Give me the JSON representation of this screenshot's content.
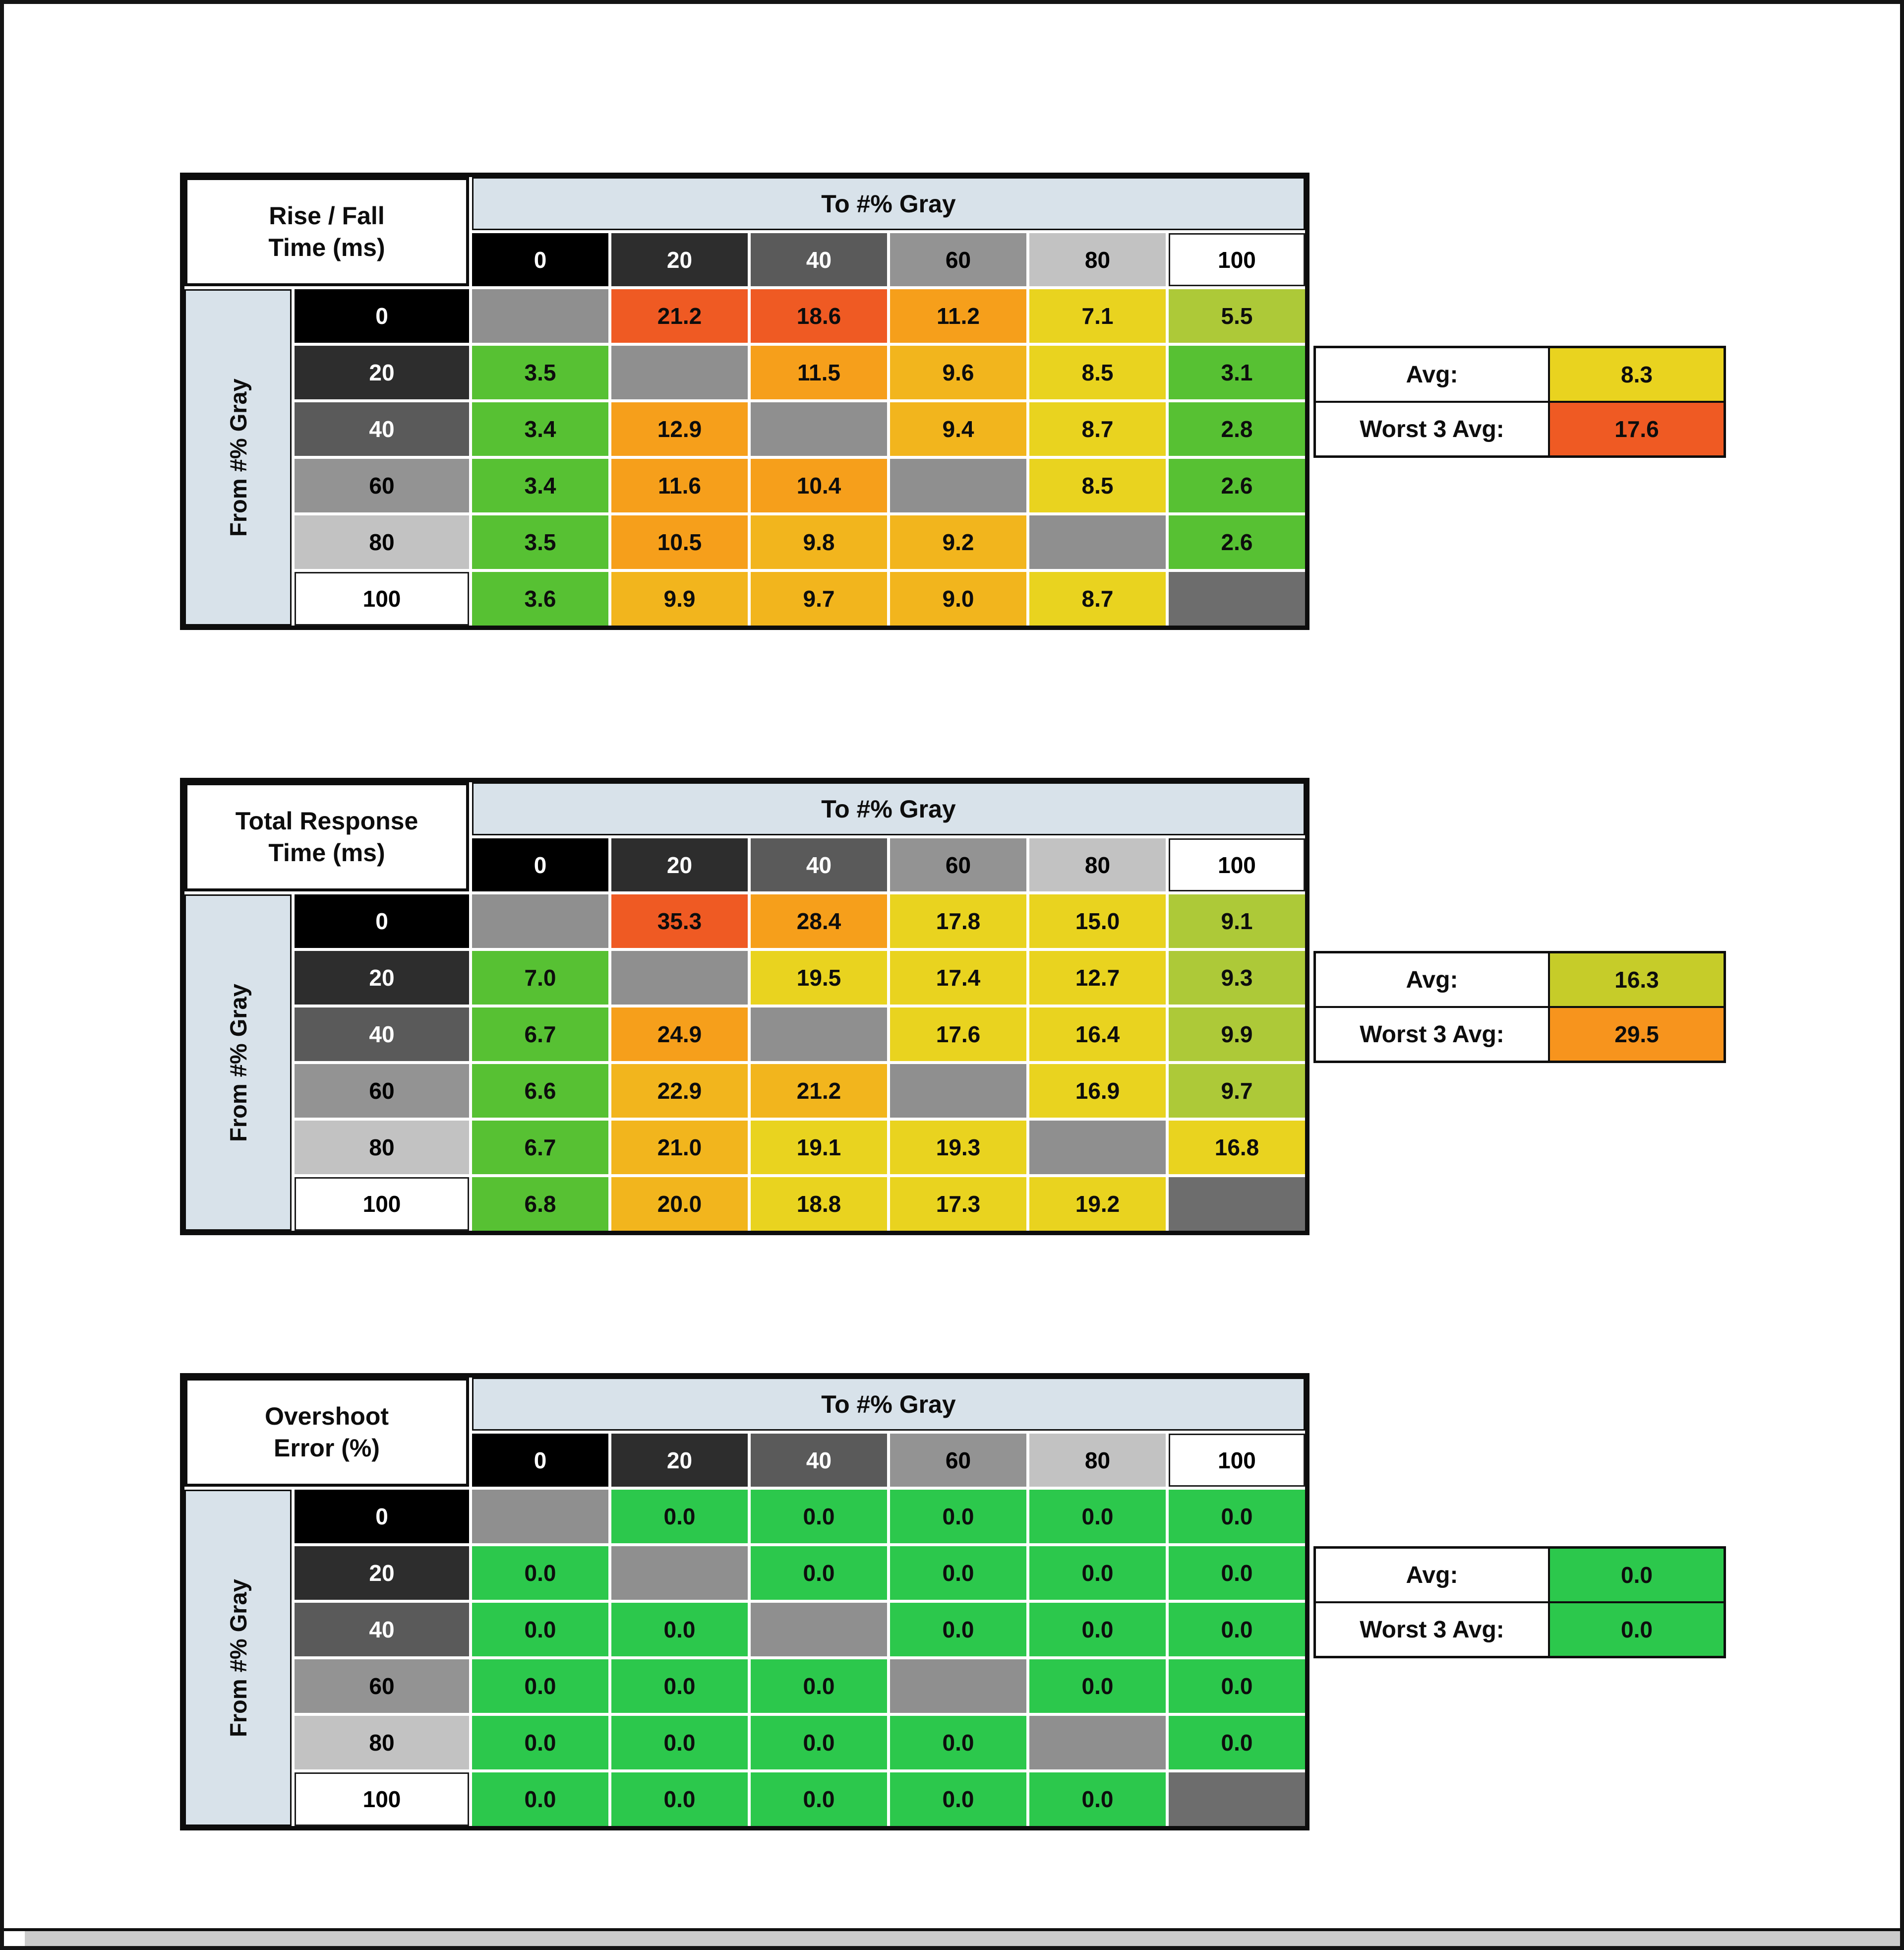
{
  "palette": {
    "g": "#57c133",
    "g2": "#2cc84c",
    "yg": "#adc938",
    "y": "#e9d31f",
    "yo": "#f2b51d",
    "o": "#f69f1b",
    "ro": "#ef5a23",
    "o2": "#f7941d",
    "olive": "#c6cc29",
    "diag": "#8f8f8f",
    "diag_dark": "#6d6d6d",
    "header_blue": "#d8e2ea",
    "gray_bg": [
      "#000000",
      "#2d2d2d",
      "#5a5a5a",
      "#939393",
      "#c2c2c2",
      "#ffffff"
    ],
    "gray_fg": [
      "#ffffff",
      "#ffffff",
      "#ffffff",
      "#000000",
      "#000000",
      "#000000"
    ]
  },
  "tables": [
    {
      "title_line1": "Rise / Fall",
      "title_line2": "Time (ms)",
      "col_header": "To #% Gray",
      "row_header": "From #% Gray",
      "levels": [
        "0",
        "20",
        "40",
        "60",
        "80",
        "100"
      ],
      "cells": [
        [
          null,
          {
            "v": "21.2",
            "c": "ro"
          },
          {
            "v": "18.6",
            "c": "ro"
          },
          {
            "v": "11.2",
            "c": "o"
          },
          {
            "v": "7.1",
            "c": "y"
          },
          {
            "v": "5.5",
            "c": "yg"
          }
        ],
        [
          {
            "v": "3.5",
            "c": "g"
          },
          null,
          {
            "v": "11.5",
            "c": "o"
          },
          {
            "v": "9.6",
            "c": "yo"
          },
          {
            "v": "8.5",
            "c": "y"
          },
          {
            "v": "3.1",
            "c": "g"
          }
        ],
        [
          {
            "v": "3.4",
            "c": "g"
          },
          {
            "v": "12.9",
            "c": "o"
          },
          null,
          {
            "v": "9.4",
            "c": "yo"
          },
          {
            "v": "8.7",
            "c": "y"
          },
          {
            "v": "2.8",
            "c": "g"
          }
        ],
        [
          {
            "v": "3.4",
            "c": "g"
          },
          {
            "v": "11.6",
            "c": "o"
          },
          {
            "v": "10.4",
            "c": "o"
          },
          null,
          {
            "v": "8.5",
            "c": "y"
          },
          {
            "v": "2.6",
            "c": "g"
          }
        ],
        [
          {
            "v": "3.5",
            "c": "g"
          },
          {
            "v": "10.5",
            "c": "o"
          },
          {
            "v": "9.8",
            "c": "yo"
          },
          {
            "v": "9.2",
            "c": "yo"
          },
          null,
          {
            "v": "2.6",
            "c": "g"
          }
        ],
        [
          {
            "v": "3.6",
            "c": "g"
          },
          {
            "v": "9.9",
            "c": "yo"
          },
          {
            "v": "9.7",
            "c": "yo"
          },
          {
            "v": "9.0",
            "c": "yo"
          },
          {
            "v": "8.7",
            "c": "y"
          },
          null
        ]
      ],
      "avg_label": "Avg:",
      "avg": {
        "v": "8.3",
        "c": "y"
      },
      "worst_label": "Worst 3 Avg:",
      "worst": {
        "v": "17.6",
        "c": "ro"
      }
    },
    {
      "title_line1": "Total Response",
      "title_line2": "Time (ms)",
      "col_header": "To #% Gray",
      "row_header": "From #% Gray",
      "levels": [
        "0",
        "20",
        "40",
        "60",
        "80",
        "100"
      ],
      "cells": [
        [
          null,
          {
            "v": "35.3",
            "c": "ro"
          },
          {
            "v": "28.4",
            "c": "o"
          },
          {
            "v": "17.8",
            "c": "y"
          },
          {
            "v": "15.0",
            "c": "y"
          },
          {
            "v": "9.1",
            "c": "yg"
          }
        ],
        [
          {
            "v": "7.0",
            "c": "g"
          },
          null,
          {
            "v": "19.5",
            "c": "y"
          },
          {
            "v": "17.4",
            "c": "y"
          },
          {
            "v": "12.7",
            "c": "y"
          },
          {
            "v": "9.3",
            "c": "yg"
          }
        ],
        [
          {
            "v": "6.7",
            "c": "g"
          },
          {
            "v": "24.9",
            "c": "o"
          },
          null,
          {
            "v": "17.6",
            "c": "y"
          },
          {
            "v": "16.4",
            "c": "y"
          },
          {
            "v": "9.9",
            "c": "yg"
          }
        ],
        [
          {
            "v": "6.6",
            "c": "g"
          },
          {
            "v": "22.9",
            "c": "yo"
          },
          {
            "v": "21.2",
            "c": "yo"
          },
          null,
          {
            "v": "16.9",
            "c": "y"
          },
          {
            "v": "9.7",
            "c": "yg"
          }
        ],
        [
          {
            "v": "6.7",
            "c": "g"
          },
          {
            "v": "21.0",
            "c": "yo"
          },
          {
            "v": "19.1",
            "c": "y"
          },
          {
            "v": "19.3",
            "c": "y"
          },
          null,
          {
            "v": "16.8",
            "c": "y"
          }
        ],
        [
          {
            "v": "6.8",
            "c": "g"
          },
          {
            "v": "20.0",
            "c": "yo"
          },
          {
            "v": "18.8",
            "c": "y"
          },
          {
            "v": "17.3",
            "c": "y"
          },
          {
            "v": "19.2",
            "c": "y"
          },
          null
        ]
      ],
      "avg_label": "Avg:",
      "avg": {
        "v": "16.3",
        "c": "olive"
      },
      "worst_label": "Worst 3 Avg:",
      "worst": {
        "v": "29.5",
        "c": "o2"
      }
    },
    {
      "title_line1": "Overshoot",
      "title_line2": "Error (%)",
      "col_header": "To #% Gray",
      "row_header": "From #% Gray",
      "levels": [
        "0",
        "20",
        "40",
        "60",
        "80",
        "100"
      ],
      "cells": [
        [
          null,
          {
            "v": "0.0",
            "c": "g2"
          },
          {
            "v": "0.0",
            "c": "g2"
          },
          {
            "v": "0.0",
            "c": "g2"
          },
          {
            "v": "0.0",
            "c": "g2"
          },
          {
            "v": "0.0",
            "c": "g2"
          }
        ],
        [
          {
            "v": "0.0",
            "c": "g2"
          },
          null,
          {
            "v": "0.0",
            "c": "g2"
          },
          {
            "v": "0.0",
            "c": "g2"
          },
          {
            "v": "0.0",
            "c": "g2"
          },
          {
            "v": "0.0",
            "c": "g2"
          }
        ],
        [
          {
            "v": "0.0",
            "c": "g2"
          },
          {
            "v": "0.0",
            "c": "g2"
          },
          null,
          {
            "v": "0.0",
            "c": "g2"
          },
          {
            "v": "0.0",
            "c": "g2"
          },
          {
            "v": "0.0",
            "c": "g2"
          }
        ],
        [
          {
            "v": "0.0",
            "c": "g2"
          },
          {
            "v": "0.0",
            "c": "g2"
          },
          {
            "v": "0.0",
            "c": "g2"
          },
          null,
          {
            "v": "0.0",
            "c": "g2"
          },
          {
            "v": "0.0",
            "c": "g2"
          }
        ],
        [
          {
            "v": "0.0",
            "c": "g2"
          },
          {
            "v": "0.0",
            "c": "g2"
          },
          {
            "v": "0.0",
            "c": "g2"
          },
          {
            "v": "0.0",
            "c": "g2"
          },
          null,
          {
            "v": "0.0",
            "c": "g2"
          }
        ],
        [
          {
            "v": "0.0",
            "c": "g2"
          },
          {
            "v": "0.0",
            "c": "g2"
          },
          {
            "v": "0.0",
            "c": "g2"
          },
          {
            "v": "0.0",
            "c": "g2"
          },
          {
            "v": "0.0",
            "c": "g2"
          },
          null
        ]
      ],
      "avg_label": "Avg:",
      "avg": {
        "v": "0.0",
        "c": "g2"
      },
      "worst_label": "Worst 3 Avg:",
      "worst": {
        "v": "0.0",
        "c": "g2"
      }
    }
  ],
  "chart_data": [
    {
      "type": "heatmap",
      "title": "Rise / Fall Time (ms)",
      "xlabel": "To #% Gray",
      "ylabel": "From #% Gray",
      "levels": [
        0,
        20,
        40,
        60,
        80,
        100
      ],
      "matrix": [
        [
          null,
          21.2,
          18.6,
          11.2,
          7.1,
          5.5
        ],
        [
          3.5,
          null,
          11.5,
          9.6,
          8.5,
          3.1
        ],
        [
          3.4,
          12.9,
          null,
          9.4,
          8.7,
          2.8
        ],
        [
          3.4,
          11.6,
          10.4,
          null,
          8.5,
          2.6
        ],
        [
          3.5,
          10.5,
          9.8,
          9.2,
          null,
          2.6
        ],
        [
          3.6,
          9.9,
          9.7,
          9.0,
          8.7,
          null
        ]
      ],
      "avg": 8.3,
      "worst_3_avg": 17.6
    },
    {
      "type": "heatmap",
      "title": "Total Response Time (ms)",
      "xlabel": "To #% Gray",
      "ylabel": "From #% Gray",
      "levels": [
        0,
        20,
        40,
        60,
        80,
        100
      ],
      "matrix": [
        [
          null,
          35.3,
          28.4,
          17.8,
          15.0,
          9.1
        ],
        [
          7.0,
          null,
          19.5,
          17.4,
          12.7,
          9.3
        ],
        [
          6.7,
          24.9,
          null,
          17.6,
          16.4,
          9.9
        ],
        [
          6.6,
          22.9,
          21.2,
          null,
          16.9,
          9.7
        ],
        [
          6.7,
          21.0,
          19.1,
          19.3,
          null,
          16.8
        ],
        [
          6.8,
          20.0,
          18.8,
          17.3,
          19.2,
          null
        ]
      ],
      "avg": 16.3,
      "worst_3_avg": 29.5
    },
    {
      "type": "heatmap",
      "title": "Overshoot Error (%)",
      "xlabel": "To #% Gray",
      "ylabel": "From #% Gray",
      "levels": [
        0,
        20,
        40,
        60,
        80,
        100
      ],
      "matrix": [
        [
          null,
          0,
          0,
          0,
          0,
          0
        ],
        [
          0,
          null,
          0,
          0,
          0,
          0
        ],
        [
          0,
          0,
          null,
          0,
          0,
          0
        ],
        [
          0,
          0,
          0,
          null,
          0,
          0
        ],
        [
          0,
          0,
          0,
          0,
          null,
          0
        ],
        [
          0,
          0,
          0,
          0,
          0,
          null
        ]
      ],
      "avg": 0.0,
      "worst_3_avg": 0.0
    }
  ]
}
